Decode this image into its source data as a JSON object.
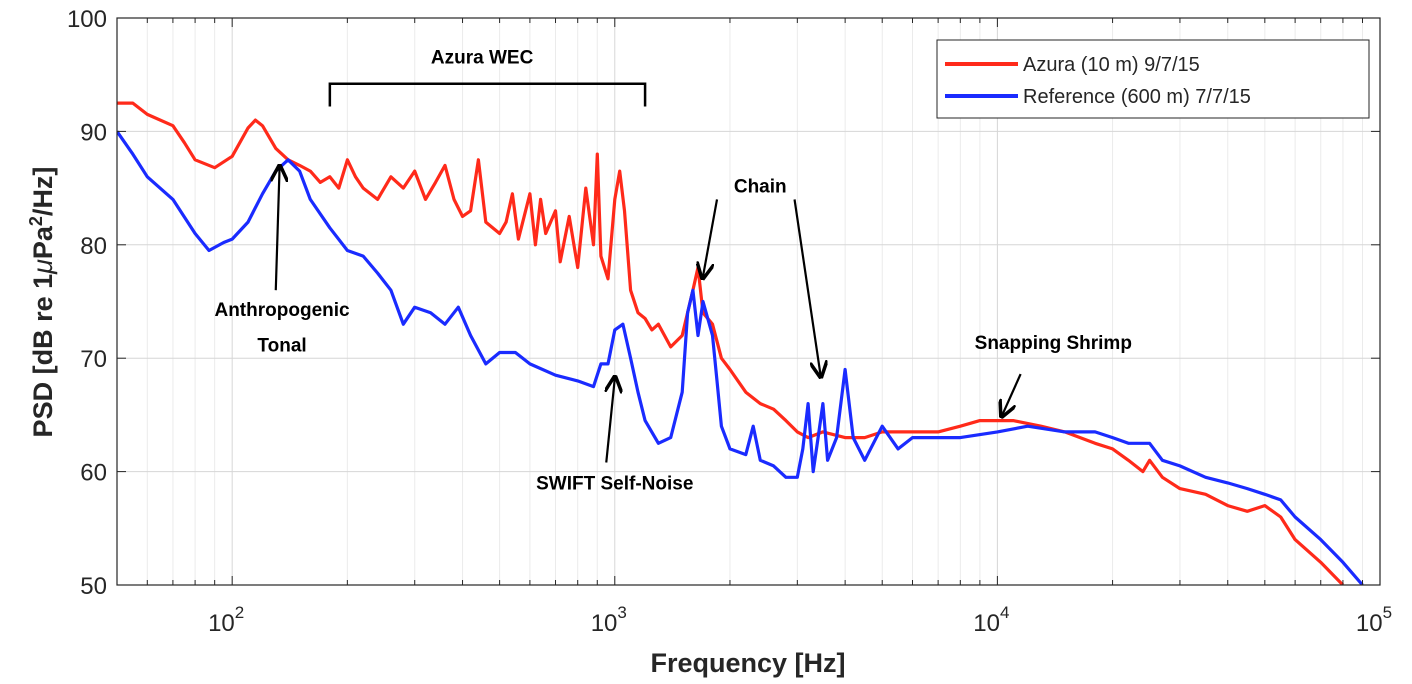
{
  "chart_data": {
    "type": "line",
    "xscale": "log",
    "xlim": [
      50,
      100000
    ],
    "ylim": [
      50,
      100
    ],
    "xlabel": "Frequency [Hz]",
    "ylabel_main": "PSD [dB re 1",
    "ylabel_mu": "μ",
    "ylabel_tail": "Pa",
    "ylabel_sup": "2",
    "ylabel_end": "/Hz]",
    "grid": true,
    "legend_position": "top-right",
    "y_ticks": [
      {
        "value": 50,
        "label": "50"
      },
      {
        "value": 60,
        "label": "60"
      },
      {
        "value": 70,
        "label": "70"
      },
      {
        "value": 80,
        "label": "80"
      },
      {
        "value": 90,
        "label": "90"
      },
      {
        "value": 100,
        "label": "100"
      }
    ],
    "x_ticks": [
      {
        "value": 100,
        "base": "10",
        "exp": "2"
      },
      {
        "value": 1000,
        "base": "10",
        "exp": "3"
      },
      {
        "value": 10000,
        "base": "10",
        "exp": "4"
      },
      {
        "value": 100000,
        "base": "10",
        "exp": "5"
      }
    ],
    "series": [
      {
        "name": "Azura (10 m) 9/7/15",
        "color": "#ff2a1a",
        "points": [
          [
            50,
            92.5
          ],
          [
            55,
            92.5
          ],
          [
            60,
            91.5
          ],
          [
            70,
            90.5
          ],
          [
            75,
            89
          ],
          [
            80,
            87.5
          ],
          [
            90,
            86.8
          ],
          [
            100,
            87.8
          ],
          [
            110,
            90.3
          ],
          [
            115,
            91
          ],
          [
            120,
            90.5
          ],
          [
            130,
            88.5
          ],
          [
            140,
            87.5
          ],
          [
            150,
            87
          ],
          [
            160,
            86.5
          ],
          [
            170,
            85.5
          ],
          [
            180,
            86
          ],
          [
            190,
            85
          ],
          [
            200,
            87.5
          ],
          [
            210,
            86
          ],
          [
            220,
            85
          ],
          [
            240,
            84
          ],
          [
            260,
            86
          ],
          [
            280,
            85
          ],
          [
            300,
            86.5
          ],
          [
            320,
            84
          ],
          [
            340,
            85.5
          ],
          [
            360,
            87
          ],
          [
            380,
            84
          ],
          [
            400,
            82.5
          ],
          [
            420,
            83
          ],
          [
            440,
            87.5
          ],
          [
            460,
            82
          ],
          [
            500,
            81
          ],
          [
            520,
            82
          ],
          [
            540,
            84.5
          ],
          [
            560,
            80.5
          ],
          [
            600,
            84.5
          ],
          [
            620,
            80
          ],
          [
            640,
            84
          ],
          [
            660,
            81
          ],
          [
            700,
            83
          ],
          [
            720,
            78.5
          ],
          [
            760,
            82.5
          ],
          [
            800,
            78
          ],
          [
            840,
            85
          ],
          [
            880,
            80
          ],
          [
            900,
            88
          ],
          [
            920,
            79
          ],
          [
            960,
            77
          ],
          [
            1000,
            84
          ],
          [
            1030,
            86.5
          ],
          [
            1060,
            83
          ],
          [
            1100,
            76
          ],
          [
            1150,
            74
          ],
          [
            1200,
            73.5
          ],
          [
            1250,
            72.5
          ],
          [
            1300,
            73
          ],
          [
            1400,
            71
          ],
          [
            1500,
            72
          ],
          [
            1600,
            76
          ],
          [
            1650,
            78
          ],
          [
            1700,
            74
          ],
          [
            1800,
            73
          ],
          [
            1900,
            70
          ],
          [
            2000,
            69
          ],
          [
            2200,
            67
          ],
          [
            2400,
            66
          ],
          [
            2600,
            65.5
          ],
          [
            2800,
            64.5
          ],
          [
            3000,
            63.5
          ],
          [
            3200,
            63
          ],
          [
            3500,
            63.5
          ],
          [
            4000,
            63
          ],
          [
            4500,
            63
          ],
          [
            5000,
            63.5
          ],
          [
            6000,
            63.5
          ],
          [
            7000,
            63.5
          ],
          [
            8000,
            64
          ],
          [
            9000,
            64.5
          ],
          [
            10000,
            64.5
          ],
          [
            11000,
            64.5
          ],
          [
            13000,
            64
          ],
          [
            15000,
            63.5
          ],
          [
            18000,
            62.5
          ],
          [
            20000,
            62
          ],
          [
            22000,
            61
          ],
          [
            24000,
            60
          ],
          [
            25000,
            61
          ],
          [
            27000,
            59.5
          ],
          [
            30000,
            58.5
          ],
          [
            35000,
            58
          ],
          [
            40000,
            57
          ],
          [
            45000,
            56.5
          ],
          [
            50000,
            57
          ],
          [
            55000,
            56
          ],
          [
            60000,
            54
          ],
          [
            70000,
            52
          ],
          [
            80000,
            50
          ]
        ]
      },
      {
        "name": "Reference (600 m) 7/7/15",
        "color": "#1a2bff",
        "points": [
          [
            50,
            90
          ],
          [
            55,
            88
          ],
          [
            60,
            86
          ],
          [
            70,
            84
          ],
          [
            80,
            81
          ],
          [
            87,
            79.5
          ],
          [
            95,
            80.2
          ],
          [
            100,
            80.5
          ],
          [
            110,
            82
          ],
          [
            120,
            84.5
          ],
          [
            130,
            86.5
          ],
          [
            140,
            87.5
          ],
          [
            150,
            86.5
          ],
          [
            160,
            84
          ],
          [
            180,
            81.5
          ],
          [
            200,
            79.5
          ],
          [
            220,
            79
          ],
          [
            240,
            77.5
          ],
          [
            260,
            76
          ],
          [
            280,
            73
          ],
          [
            300,
            74.5
          ],
          [
            330,
            74
          ],
          [
            360,
            73
          ],
          [
            390,
            74.5
          ],
          [
            420,
            72
          ],
          [
            460,
            69.5
          ],
          [
            500,
            70.5
          ],
          [
            550,
            70.5
          ],
          [
            600,
            69.5
          ],
          [
            700,
            68.5
          ],
          [
            800,
            68
          ],
          [
            880,
            67.5
          ],
          [
            920,
            69.5
          ],
          [
            960,
            69.5
          ],
          [
            1000,
            72.5
          ],
          [
            1050,
            73
          ],
          [
            1100,
            70
          ],
          [
            1150,
            67
          ],
          [
            1200,
            64.5
          ],
          [
            1300,
            62.5
          ],
          [
            1400,
            63
          ],
          [
            1500,
            67
          ],
          [
            1550,
            74
          ],
          [
            1600,
            76
          ],
          [
            1650,
            72
          ],
          [
            1700,
            75
          ],
          [
            1800,
            72
          ],
          [
            1850,
            68
          ],
          [
            1900,
            64
          ],
          [
            2000,
            62
          ],
          [
            2200,
            61.5
          ],
          [
            2300,
            64
          ],
          [
            2400,
            61
          ],
          [
            2600,
            60.5
          ],
          [
            2800,
            59.5
          ],
          [
            3000,
            59.5
          ],
          [
            3100,
            62
          ],
          [
            3200,
            66
          ],
          [
            3300,
            60
          ],
          [
            3400,
            63
          ],
          [
            3500,
            66
          ],
          [
            3600,
            61
          ],
          [
            3800,
            63
          ],
          [
            4000,
            69
          ],
          [
            4200,
            63
          ],
          [
            4500,
            61
          ],
          [
            5000,
            64
          ],
          [
            5500,
            62
          ],
          [
            6000,
            63
          ],
          [
            7000,
            63
          ],
          [
            8000,
            63
          ],
          [
            10000,
            63.5
          ],
          [
            12000,
            64
          ],
          [
            15000,
            63.5
          ],
          [
            18000,
            63.5
          ],
          [
            20000,
            63
          ],
          [
            22000,
            62.5
          ],
          [
            25000,
            62.5
          ],
          [
            27000,
            61
          ],
          [
            30000,
            60.5
          ],
          [
            35000,
            59.5
          ],
          [
            40000,
            59
          ],
          [
            45000,
            58.5
          ],
          [
            50000,
            58
          ],
          [
            55000,
            57.5
          ],
          [
            60000,
            56
          ],
          [
            70000,
            54
          ],
          [
            80000,
            52
          ],
          [
            90000,
            50
          ]
        ]
      }
    ],
    "annotations": [
      {
        "id": "azura-wec",
        "text": "Azura WEC",
        "x": 450,
        "y": 96
      },
      {
        "id": "anthropogenic-1",
        "text": "Anthropogenic",
        "x": 135,
        "y": 73.7
      },
      {
        "id": "anthropogenic-2",
        "text": "Tonal",
        "x": 135,
        "y": 70.6
      },
      {
        "id": "chain",
        "text": "Chain",
        "x": 2400,
        "y": 84.6
      },
      {
        "id": "snapping-shrimp",
        "text": "Snapping Shrimp",
        "x": 14000,
        "y": 70.8
      },
      {
        "id": "swift",
        "text": "SWIFT Self-Noise",
        "x": 1000,
        "y": 58.4
      }
    ],
    "bracket": {
      "x_start": 180,
      "x_end": 1200,
      "y_top": 94.2,
      "y_tip": 92.2
    },
    "arrows": [
      {
        "id": "anthropogenic-arrow",
        "from": [
          130,
          76
        ],
        "to": [
          133,
          86.8
        ]
      },
      {
        "id": "chain-arrow-1",
        "from": [
          1850,
          84
        ],
        "to": [
          1700,
          77.2
        ]
      },
      {
        "id": "chain-arrow-2",
        "from": [
          2950,
          84
        ],
        "to": [
          3450,
          68.5
        ]
      },
      {
        "id": "snapping-shrimp-arrow",
        "from": [
          11500,
          68.6
        ],
        "to": [
          10300,
          65
        ]
      },
      {
        "id": "swift-arrow",
        "from": [
          950,
          60.8
        ],
        "to": [
          1000,
          68.2
        ]
      }
    ]
  }
}
